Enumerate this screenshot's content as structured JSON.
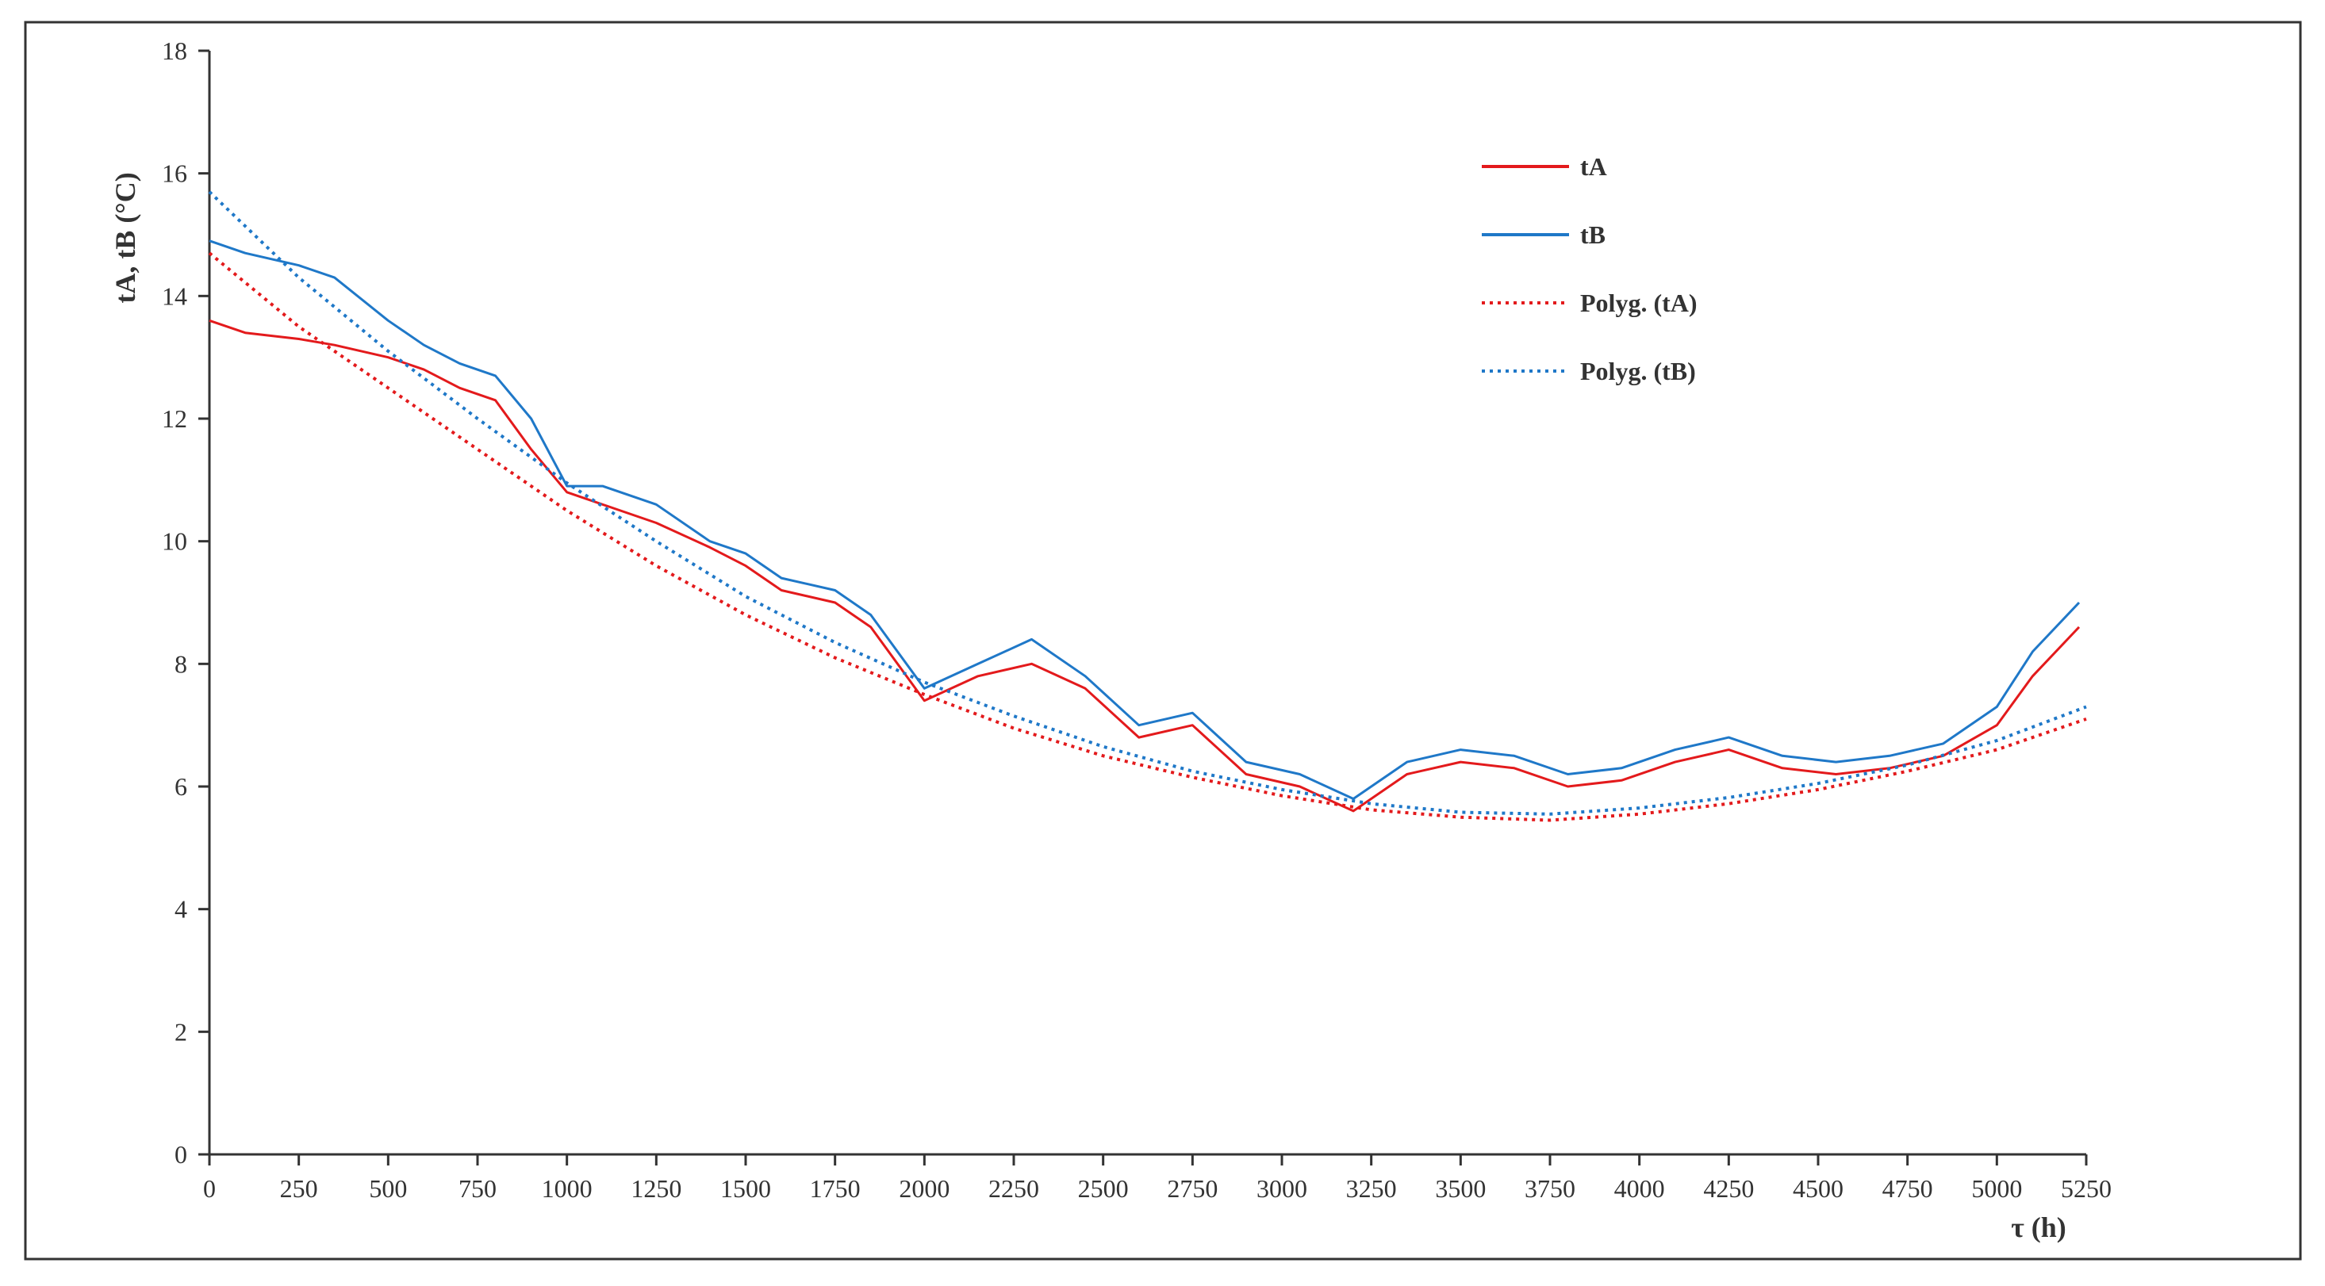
{
  "chart_data": {
    "type": "line",
    "title": "",
    "xlabel": "τ (h)",
    "ylabel": "tA, tB (°C)",
    "xlim": [
      0,
      5250
    ],
    "ylim": [
      0,
      18
    ],
    "x_ticks": [
      "0",
      "250",
      "500",
      "750",
      "1000",
      "1250",
      "1500",
      "1750",
      "2000",
      "2250",
      "2500",
      "2750",
      "3000",
      "3250",
      "3500",
      "3750",
      "4000",
      "4250",
      "4500",
      "4750",
      "5000",
      "5250"
    ],
    "y_ticks": [
      "0",
      "2",
      "4",
      "6",
      "8",
      "10",
      "12",
      "14",
      "16",
      "18"
    ],
    "legend_position": "top-right",
    "series": [
      {
        "name": "tA",
        "style": "solid",
        "color": "#e31a1c",
        "x": [
          0,
          100,
          250,
          350,
          500,
          600,
          700,
          800,
          900,
          1000,
          1100,
          1250,
          1400,
          1500,
          1600,
          1750,
          1850,
          2000,
          2150,
          2300,
          2450,
          2600,
          2750,
          2900,
          3050,
          3200,
          3350,
          3500,
          3650,
          3800,
          3950,
          4100,
          4250,
          4400,
          4550,
          4700,
          4850,
          5000,
          5100,
          5230
        ],
        "y": [
          13.6,
          13.4,
          13.3,
          13.2,
          13.0,
          12.8,
          12.5,
          12.3,
          11.5,
          10.8,
          10.6,
          10.3,
          9.9,
          9.6,
          9.2,
          9.0,
          8.6,
          7.4,
          7.8,
          8.0,
          7.6,
          6.8,
          7.0,
          6.2,
          6.0,
          5.6,
          6.2,
          6.4,
          6.3,
          6.0,
          6.1,
          6.4,
          6.6,
          6.3,
          6.2,
          6.3,
          6.5,
          7.0,
          7.8,
          8.6
        ]
      },
      {
        "name": "tB",
        "style": "solid",
        "color": "#1f78c8",
        "x": [
          0,
          100,
          250,
          350,
          500,
          600,
          700,
          800,
          900,
          1000,
          1100,
          1250,
          1400,
          1500,
          1600,
          1750,
          1850,
          2000,
          2150,
          2300,
          2450,
          2600,
          2750,
          2900,
          3050,
          3200,
          3350,
          3500,
          3650,
          3800,
          3950,
          4100,
          4250,
          4400,
          4550,
          4700,
          4850,
          5000,
          5100,
          5230
        ],
        "y": [
          14.9,
          14.7,
          14.5,
          14.3,
          13.6,
          13.2,
          12.9,
          12.7,
          12.0,
          10.9,
          10.9,
          10.6,
          10.0,
          9.8,
          9.4,
          9.2,
          8.8,
          7.6,
          8.0,
          8.4,
          7.8,
          7.0,
          7.2,
          6.4,
          6.2,
          5.8,
          6.4,
          6.6,
          6.5,
          6.2,
          6.3,
          6.6,
          6.8,
          6.5,
          6.4,
          6.5,
          6.7,
          7.3,
          8.2,
          9.0
        ]
      },
      {
        "name": "Polyg. (tA)",
        "style": "dotted",
        "color": "#e31a1c",
        "x": [
          0,
          250,
          500,
          750,
          1000,
          1250,
          1500,
          1750,
          2000,
          2250,
          2500,
          2750,
          3000,
          3250,
          3500,
          3750,
          4000,
          4250,
          4500,
          4750,
          5000,
          5250
        ],
        "y": [
          14.7,
          13.5,
          12.5,
          11.5,
          10.5,
          9.6,
          8.8,
          8.1,
          7.5,
          6.95,
          6.5,
          6.15,
          5.85,
          5.62,
          5.5,
          5.45,
          5.55,
          5.72,
          5.95,
          6.25,
          6.6,
          7.1
        ]
      },
      {
        "name": "Polyg. (tB)",
        "style": "dotted",
        "color": "#1f78c8",
        "x": [
          0,
          250,
          500,
          750,
          1000,
          1250,
          1500,
          1750,
          2000,
          2250,
          2500,
          2750,
          3000,
          3250,
          3500,
          3750,
          4000,
          4250,
          4500,
          4750,
          5000,
          5250
        ],
        "y": [
          15.7,
          14.3,
          13.1,
          12.0,
          10.95,
          10.0,
          9.1,
          8.35,
          7.7,
          7.15,
          6.65,
          6.25,
          5.95,
          5.72,
          5.58,
          5.55,
          5.65,
          5.82,
          6.05,
          6.35,
          6.75,
          7.3
        ]
      }
    ]
  }
}
